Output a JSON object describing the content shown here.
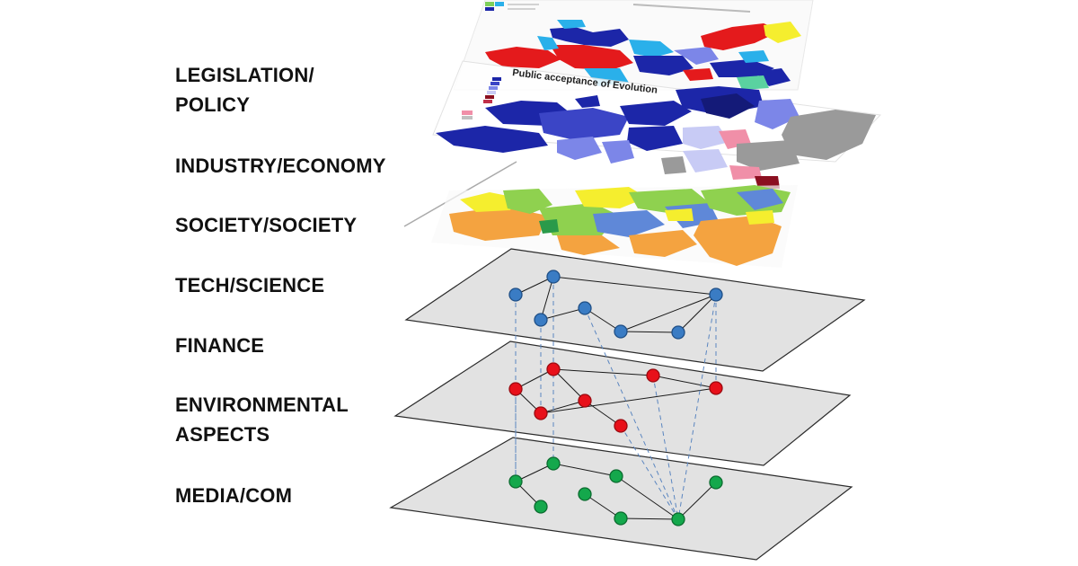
{
  "labels": {
    "legislation": "LEGISLATION/\nPOLICY",
    "industry": "INDUSTRY/ECONOMY",
    "society": "SOCIETY/SOCIETY",
    "tech": "TECH/SCIENCE",
    "finance": "FINANCE",
    "environmental": "ENVIRONMENTAL\nASPECTS",
    "media": "MEDIA/COM"
  },
  "map_text": {
    "evolution_title": "Public acceptance of Evolution"
  },
  "colors": {
    "plane_fill": "#e2e2e2",
    "plane_stroke": "#2b2b2b",
    "node_blue": "#3a7cc4",
    "node_blue_stroke": "#1f4f86",
    "node_red": "#e8101a",
    "node_red_stroke": "#9a0a10",
    "node_green": "#14a84c",
    "node_green_stroke": "#0b6b2f",
    "interlayer_link": "#5b86c0",
    "map_dark_blue": "#1c26a8",
    "map_light_blue": "#7c86e8",
    "map_cyan": "#2ab0ea",
    "map_red": "#e41a1c",
    "map_yellow": "#f5ee2e",
    "map_grey": "#9a9a9a",
    "map_green": "#8fd14f",
    "map_orange": "#f4a340",
    "map_pink": "#f08fa8"
  }
}
